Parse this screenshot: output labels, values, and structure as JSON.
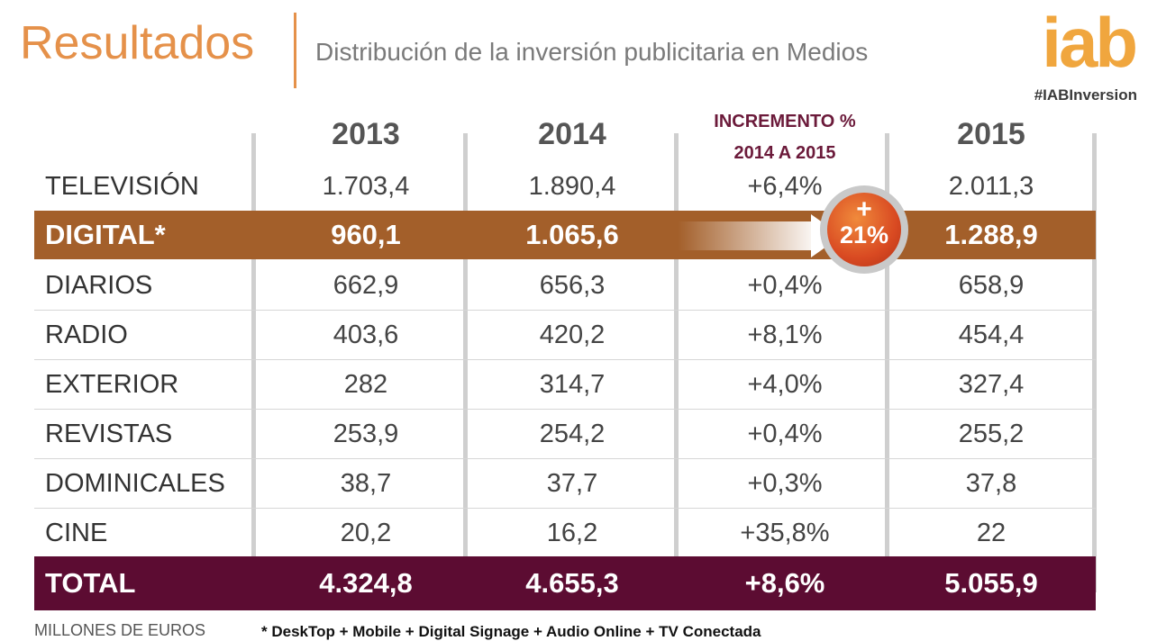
{
  "header": {
    "title": "Resultados",
    "subtitle": "Distribución de la inversión publicitaria en Medios",
    "logo": "iab",
    "hashtag": "#IABInversion"
  },
  "colors": {
    "accent_orange": "#e5914a",
    "digital_row": "#a35f2a",
    "total_row": "#5c0c32",
    "increment_header": "#6b1a3a"
  },
  "chart_data": {
    "type": "table",
    "columns": [
      "",
      "2013",
      "2014",
      "INCREMENTO % 2014 A 2015",
      "2015"
    ],
    "increment_header_lines": [
      "INCREMENTO %",
      "2014 A 2015"
    ],
    "rows": [
      {
        "label": "TELEVISIÓN",
        "y2013": "1.703,4",
        "y2014": "1.890,4",
        "inc": "+6,4%",
        "y2015": "2.011,3"
      },
      {
        "label": "DIGITAL*",
        "y2013": "960,1",
        "y2014": "1.065,6",
        "inc": "",
        "y2015": "1.288,9"
      },
      {
        "label": "DIARIOS",
        "y2013": "662,9",
        "y2014": "656,3",
        "inc": "+0,4%",
        "y2015": "658,9"
      },
      {
        "label": "RADIO",
        "y2013": "403,6",
        "y2014": "420,2",
        "inc": "+8,1%",
        "y2015": "454,4"
      },
      {
        "label": "EXTERIOR",
        "y2013": "282",
        "y2014": "314,7",
        "inc": "+4,0%",
        "y2015": "327,4"
      },
      {
        "label": "REVISTAS",
        "y2013": "253,9",
        "y2014": "254,2",
        "inc": "+0,4%",
        "y2015": "255,2"
      },
      {
        "label": "DOMINICALES",
        "y2013": "38,7",
        "y2014": "37,7",
        "inc": "+0,3%",
        "y2015": "37,8"
      },
      {
        "label": "CINE",
        "y2013": "20,2",
        "y2014": "16,2",
        "inc": "+35,8%",
        "y2015": "22"
      },
      {
        "label": "TOTAL",
        "y2013": "4.324,8",
        "y2014": "4.655,3",
        "inc": "+8,6%",
        "y2015": "5.055,9"
      }
    ],
    "digital_badge": {
      "sign": "+",
      "value": "21%"
    }
  },
  "footer": {
    "units": "MILLONES DE EUROS",
    "note": "* DeskTop + Mobile + Digital Signage + Audio Online + TV Conectada"
  }
}
